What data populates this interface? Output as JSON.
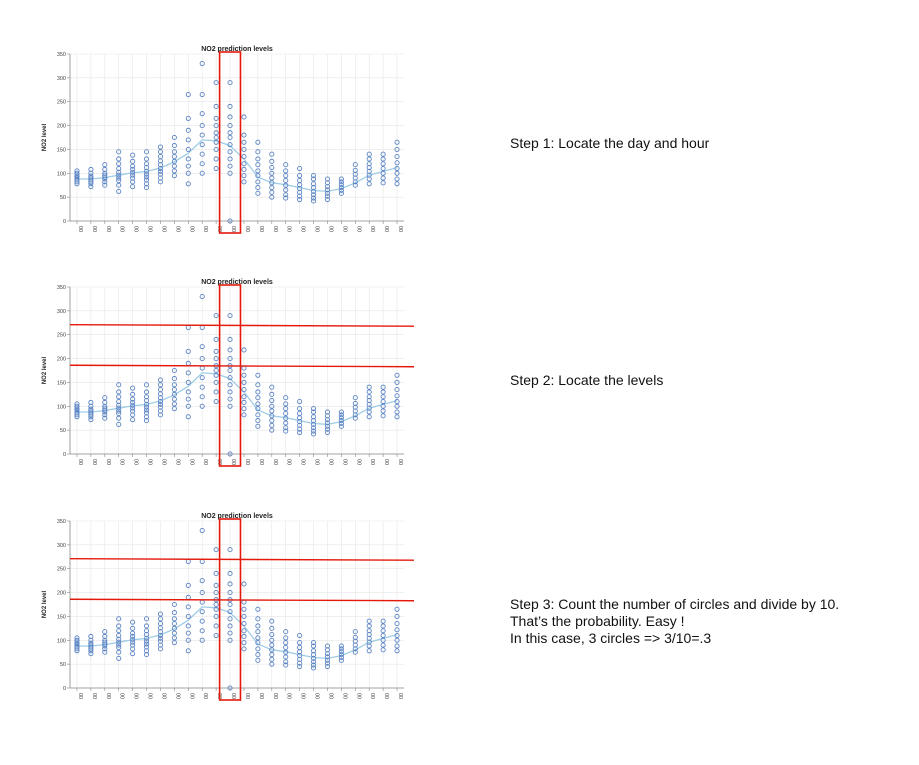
{
  "chart_data": {
    "type": "scatter",
    "title": "NO2 prediction levels",
    "ylabel": "NO2 level",
    "xlabel": "",
    "ylim": [
      0,
      350
    ],
    "yticks": [
      0,
      50,
      100,
      150,
      200,
      250,
      300,
      350
    ],
    "x_tick_label": "00",
    "grid": true,
    "categories": [
      "00",
      "00",
      "00",
      "00",
      "00",
      "00",
      "00",
      "00",
      "00",
      "00",
      "00",
      "00",
      "00",
      "00",
      "00",
      "00",
      "00",
      "00",
      "00",
      "00",
      "00",
      "00",
      "00",
      "00"
    ],
    "series": [
      {
        "kind": "points",
        "values": [
          [
            78,
            82,
            86,
            90,
            93,
            96,
            100,
            105
          ],
          [
            72,
            78,
            82,
            86,
            90,
            94,
            100,
            108
          ],
          [
            75,
            82,
            88,
            92,
            96,
            100,
            108,
            118
          ],
          [
            62,
            75,
            85,
            90,
            96,
            102,
            110,
            120,
            130,
            145
          ],
          [
            72,
            82,
            90,
            96,
            102,
            108,
            115,
            125,
            138
          ],
          [
            70,
            78,
            86,
            92,
            98,
            104,
            112,
            120,
            130,
            145
          ],
          [
            82,
            90,
            98,
            104,
            110,
            118,
            126,
            135,
            145,
            155
          ],
          [
            95,
            105,
            115,
            125,
            135,
            145,
            158,
            175
          ],
          [
            78,
            100,
            115,
            130,
            150,
            170,
            190,
            215,
            265
          ],
          [
            100,
            120,
            140,
            160,
            180,
            200,
            225,
            265,
            330
          ],
          [
            110,
            130,
            150,
            165,
            175,
            185,
            200,
            215,
            240,
            290
          ],
          [
            100,
            115,
            130,
            145,
            160,
            175,
            185,
            200,
            218,
            240,
            290,
            0
          ],
          [
            82,
            95,
            108,
            120,
            135,
            150,
            165,
            180,
            218
          ],
          [
            58,
            70,
            82,
            95,
            105,
            118,
            130,
            145,
            165
          ],
          [
            50,
            60,
            70,
            80,
            90,
            100,
            112,
            125,
            140
          ],
          [
            48,
            55,
            65,
            75,
            85,
            95,
            105,
            118
          ],
          [
            45,
            52,
            60,
            68,
            76,
            85,
            95,
            110
          ],
          [
            42,
            48,
            55,
            62,
            70,
            78,
            88,
            95
          ],
          [
            45,
            52,
            58,
            65,
            72,
            80,
            88
          ],
          [
            58,
            64,
            70,
            76,
            82,
            88
          ],
          [
            75,
            82,
            90,
            98,
            106,
            118
          ],
          [
            78,
            88,
            96,
            104,
            112,
            120,
            130,
            140
          ],
          [
            80,
            90,
            100,
            110,
            120,
            130,
            140
          ],
          [
            78,
            88,
            100,
            110,
            122,
            135,
            150,
            165
          ]
        ]
      },
      {
        "kind": "line",
        "values": [
          88,
          88,
          91,
          96,
          101,
          104,
          111,
          124,
          142,
          170,
          168,
          158,
          130,
          92,
          80,
          76,
          70,
          64,
          62,
          68,
          80,
          96,
          104,
          112
        ]
      }
    ],
    "highlight_category_index": 11,
    "level_lines": [
      271,
      186
    ]
  },
  "steps": {
    "step1": "Step 1: Locate the day and hour",
    "step2": "Step 2: Locate the levels",
    "step3": "Step 3: Count the number of circles and divide by 10.\nThat’s the probability. Easy !\nIn this case, 3 circles => 3/10=.3"
  },
  "colors": {
    "points": "#5b84c4",
    "trend": "#9fcde6",
    "highlight": "#e4190c",
    "grid": "#e6e6e6"
  }
}
